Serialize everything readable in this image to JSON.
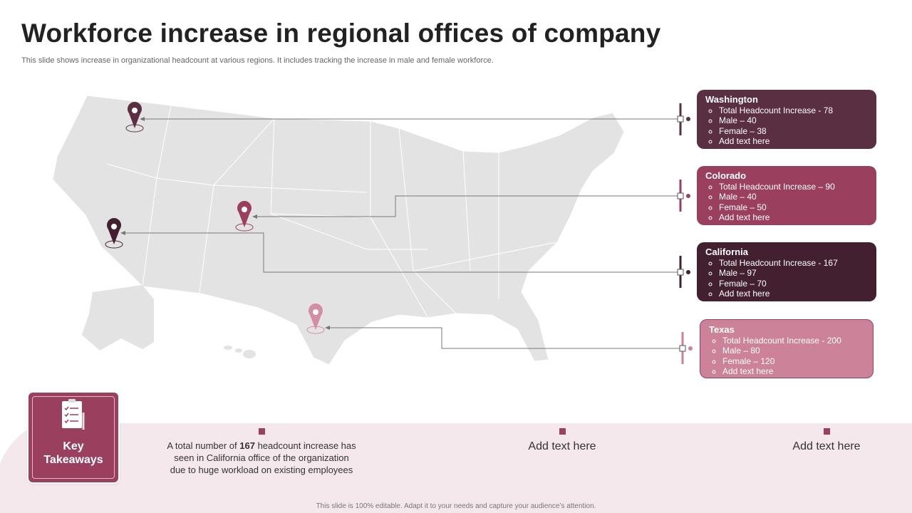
{
  "header": {
    "title": "Workforce increase in regional offices of company",
    "subtitle": "This slide shows increase in organizational headcount at various regions. It includes tracking the increase in male and female workforce."
  },
  "regions": [
    {
      "name": "Washington",
      "items": [
        "Total Headcount Increase - 78",
        "Male – 40",
        "Female – 38",
        "Add text here"
      ]
    },
    {
      "name": "Colorado",
      "items": [
        "Total Headcount Increase – 90",
        "Male – 40",
        "Female – 50",
        "Add text here"
      ]
    },
    {
      "name": "California",
      "items": [
        "Total Headcount Increase - 167",
        "Male – 97",
        "Female – 70",
        "Add text here"
      ]
    },
    {
      "name": "Texas",
      "items": [
        "Total Headcount Increase - 200",
        "Male – 80",
        "Female – 120",
        "Add text here"
      ]
    }
  ],
  "takeaways": {
    "label": "Key Takeaways",
    "items": [
      {
        "parts": [
          "A total number of ",
          "167",
          " headcount increase has seen in California office of the organization due to huge workload on existing employees"
        ]
      },
      {
        "parts": [
          "Add text here"
        ]
      },
      {
        "parts": [
          "Add text here"
        ]
      }
    ]
  },
  "footer": "This slide is 100% editable.  Adapt it to your needs and capture your audience’s attention."
}
